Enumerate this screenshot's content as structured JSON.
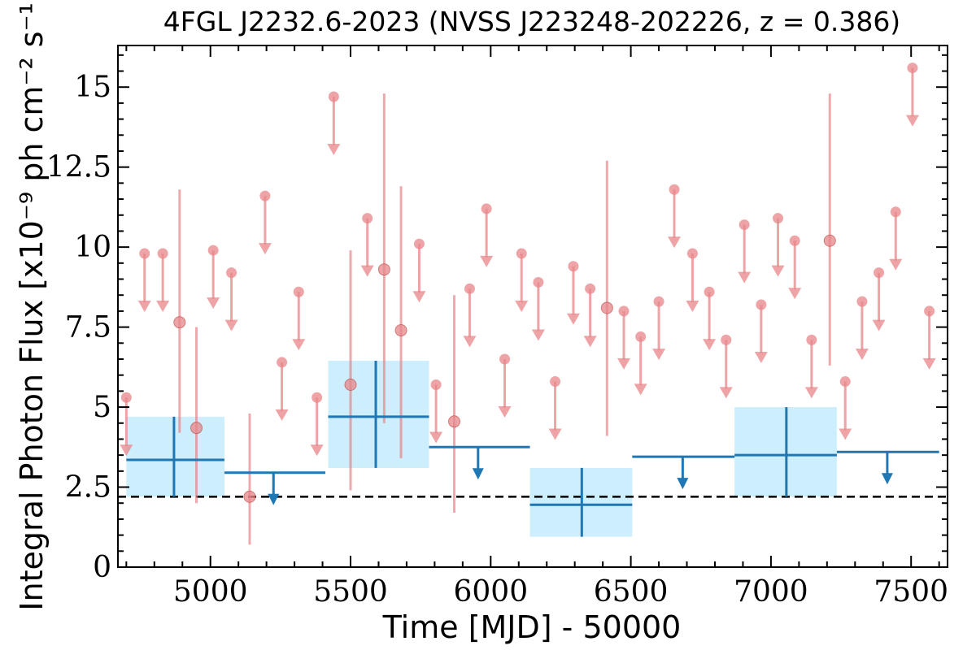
{
  "chart_data": {
    "type": "scatter",
    "title": "4FGL J2232.6-2023 (NVSS J223248-202226, z = 0.386)",
    "xlabel": "Time [MJD] - 50000",
    "ylabel": "Integral Photon Flux [x10⁻⁹ ph cm⁻² s⁻¹]",
    "xlim": [
      4670,
      7630
    ],
    "ylim": [
      0,
      16.3
    ],
    "x_ticks": [
      5000,
      5500,
      6000,
      6500,
      7000,
      7500
    ],
    "y_ticks": [
      0,
      2.5,
      5,
      7.5,
      10,
      12.5,
      15
    ],
    "y_tick_labels": [
      "0",
      "2.5",
      "5",
      "7.5",
      "10",
      "12.5",
      "15"
    ],
    "reference_line": {
      "y": 2.2,
      "style": "dashed",
      "color": "#000000"
    },
    "colors": {
      "short_bin": "#e8868a",
      "long_bin": "#1f77b4",
      "long_band": "#cdeefc"
    },
    "series": [
      {
        "bin": "short",
        "detections": [
          {
            "x": 4890,
            "y": 7.65,
            "ylo": 4.2,
            "yhi": 11.8
          },
          {
            "x": 4950,
            "y": 4.35,
            "ylo": 2.0,
            "yhi": 7.5
          },
          {
            "x": 5140,
            "y": 2.2,
            "ylo": 0.7,
            "yhi": 4.8
          },
          {
            "x": 5500,
            "y": 5.7,
            "ylo": 2.4,
            "yhi": 9.9
          },
          {
            "x": 5620,
            "y": 9.3,
            "ylo": 4.5,
            "yhi": 14.8
          },
          {
            "x": 5680,
            "y": 7.4,
            "ylo": 3.4,
            "yhi": 11.9
          },
          {
            "x": 5870,
            "y": 4.55,
            "ylo": 1.7,
            "yhi": 8.5
          },
          {
            "x": 6415,
            "y": 8.1,
            "ylo": 4.1,
            "yhi": 12.7
          },
          {
            "x": 7210,
            "y": 10.2,
            "ylo": 6.3,
            "yhi": 14.8
          }
        ],
        "upper_limits": [
          {
            "x": 4700,
            "y": 5.3
          },
          {
            "x": 4765,
            "y": 9.8
          },
          {
            "x": 4830,
            "y": 9.8
          },
          {
            "x": 5010,
            "y": 9.9
          },
          {
            "x": 5075,
            "y": 9.2
          },
          {
            "x": 5195,
            "y": 11.6
          },
          {
            "x": 5255,
            "y": 6.4
          },
          {
            "x": 5315,
            "y": 8.6
          },
          {
            "x": 5380,
            "y": 5.3
          },
          {
            "x": 5440,
            "y": 14.7
          },
          {
            "x": 5560,
            "y": 10.9
          },
          {
            "x": 5745,
            "y": 10.1
          },
          {
            "x": 5805,
            "y": 5.7
          },
          {
            "x": 5925,
            "y": 8.7
          },
          {
            "x": 5985,
            "y": 11.2
          },
          {
            "x": 6050,
            "y": 6.5
          },
          {
            "x": 6110,
            "y": 9.8
          },
          {
            "x": 6170,
            "y": 8.9
          },
          {
            "x": 6230,
            "y": 5.8
          },
          {
            "x": 6295,
            "y": 9.4
          },
          {
            "x": 6355,
            "y": 8.7
          },
          {
            "x": 6475,
            "y": 8.0
          },
          {
            "x": 6535,
            "y": 7.2
          },
          {
            "x": 6600,
            "y": 8.3
          },
          {
            "x": 6655,
            "y": 11.8
          },
          {
            "x": 6720,
            "y": 9.8
          },
          {
            "x": 6780,
            "y": 8.6
          },
          {
            "x": 6840,
            "y": 7.1
          },
          {
            "x": 6905,
            "y": 10.7
          },
          {
            "x": 6965,
            "y": 8.2
          },
          {
            "x": 7025,
            "y": 10.9
          },
          {
            "x": 7085,
            "y": 10.2
          },
          {
            "x": 7145,
            "y": 7.1
          },
          {
            "x": 7265,
            "y": 5.8
          },
          {
            "x": 7325,
            "y": 8.3
          },
          {
            "x": 7385,
            "y": 9.2
          },
          {
            "x": 7445,
            "y": 11.1
          },
          {
            "x": 7505,
            "y": 15.6
          },
          {
            "x": 7565,
            "y": 8.0
          }
        ]
      },
      {
        "bin": "long",
        "detections": [
          {
            "x0": 4700,
            "x1": 5050,
            "x": 4870,
            "y": 3.35,
            "ylo": 2.2,
            "yhi": 4.7
          },
          {
            "x0": 5420,
            "x1": 5780,
            "x": 5590,
            "y": 4.7,
            "ylo": 3.1,
            "yhi": 6.45
          },
          {
            "x0": 6140,
            "x1": 6505,
            "x": 6325,
            "y": 1.95,
            "ylo": 0.95,
            "yhi": 3.1
          },
          {
            "x0": 6870,
            "x1": 7235,
            "x": 7055,
            "y": 3.5,
            "ylo": 2.2,
            "yhi": 5.0
          }
        ],
        "upper_limits": [
          {
            "x0": 5050,
            "x1": 5410,
            "x": 5225,
            "y": 2.95
          },
          {
            "x0": 5780,
            "x1": 6140,
            "x": 5955,
            "y": 3.75
          },
          {
            "x0": 6505,
            "x1": 6870,
            "x": 6685,
            "y": 3.45
          },
          {
            "x0": 7235,
            "x1": 7600,
            "x": 7415,
            "y": 3.6
          }
        ]
      }
    ]
  }
}
